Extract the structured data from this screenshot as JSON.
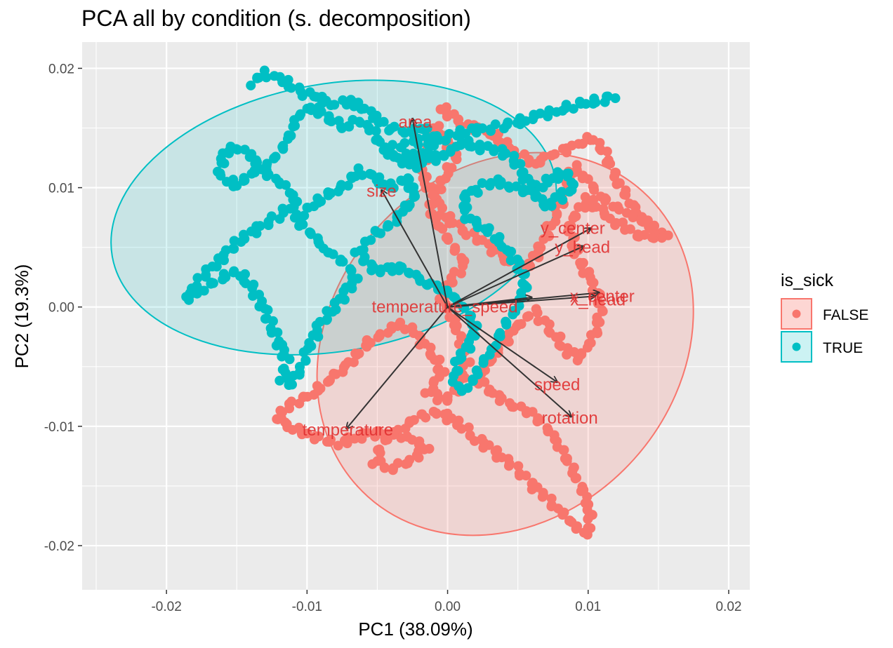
{
  "chart_data": {
    "type": "scatter",
    "title": "PCA all by condition (s. decomposition)",
    "xlabel": "PC1 (38.09%)",
    "ylabel": "PC2 (19.3%)",
    "xlim": [
      -0.026,
      0.0215
    ],
    "ylim": [
      -0.0237,
      0.0222
    ],
    "x_ticks": [
      -0.02,
      -0.01,
      0.0,
      0.01,
      0.02
    ],
    "x_tick_labels": [
      "-0.02",
      "-0.01",
      "0.00",
      "0.01",
      "0.02"
    ],
    "y_ticks": [
      -0.02,
      -0.01,
      0.0,
      0.01,
      0.02
    ],
    "y_tick_labels": [
      "-0.02",
      "-0.01",
      "0.00",
      "0.01",
      "0.02"
    ],
    "grid": true,
    "panel_background": "#ebebeb",
    "legend": {
      "title": "is_sick",
      "position": "right",
      "entries": [
        {
          "label": "FALSE",
          "color": "#F8766D"
        },
        {
          "label": "TRUE",
          "color": "#00BFC4"
        }
      ]
    },
    "series": [
      {
        "name": "FALSE",
        "color": "#F8766D",
        "path": [
          [
            -0.0005,
            0.0168
          ],
          [
            0.0008,
            0.0155
          ],
          [
            0.0032,
            0.0145
          ],
          [
            0.0048,
            0.013
          ],
          [
            0.0062,
            0.012
          ],
          [
            0.0075,
            0.0128
          ],
          [
            0.0092,
            0.0135
          ],
          [
            0.0103,
            0.0142
          ],
          [
            0.0112,
            0.0128
          ],
          [
            0.0122,
            0.0105
          ],
          [
            0.0132,
            0.0082
          ],
          [
            0.0145,
            0.0068
          ],
          [
            0.0155,
            0.006
          ],
          [
            0.0138,
            0.0058
          ],
          [
            0.0118,
            0.0072
          ],
          [
            0.01,
            0.009
          ],
          [
            0.0086,
            0.007
          ],
          [
            0.0092,
            0.0042
          ],
          [
            0.0102,
            0.0022
          ],
          [
            0.011,
            0.0002
          ],
          [
            0.0105,
            -0.0022
          ],
          [
            0.0094,
            -0.0044
          ],
          [
            0.0084,
            -0.0036
          ],
          [
            0.0073,
            -0.0018
          ],
          [
            0.0062,
            -0.0004
          ],
          [
            0.005,
            -0.0014
          ],
          [
            0.004,
            -0.003
          ],
          [
            0.003,
            -0.0045
          ],
          [
            0.0022,
            -0.006
          ],
          [
            0.0032,
            -0.0073
          ],
          [
            0.0046,
            -0.0082
          ],
          [
            0.006,
            -0.009
          ],
          [
            0.0072,
            -0.0102
          ],
          [
            0.0082,
            -0.0122
          ],
          [
            0.0092,
            -0.0142
          ],
          [
            0.0098,
            -0.016
          ],
          [
            0.0102,
            -0.0176
          ],
          [
            0.0098,
            -0.019
          ],
          [
            0.009,
            -0.0182
          ],
          [
            0.008,
            -0.0172
          ],
          [
            0.007,
            -0.016
          ],
          [
            0.0058,
            -0.0146
          ],
          [
            0.0046,
            -0.0133
          ],
          [
            0.0032,
            -0.012
          ],
          [
            0.0018,
            -0.0108
          ],
          [
            0.0006,
            -0.0096
          ],
          [
            -0.0006,
            -0.0088
          ],
          [
            -0.002,
            -0.0092
          ],
          [
            -0.0034,
            -0.0102
          ],
          [
            -0.0046,
            -0.0114
          ],
          [
            -0.0052,
            -0.013
          ],
          [
            -0.004,
            -0.0136
          ],
          [
            -0.0026,
            -0.0128
          ],
          [
            -0.0014,
            -0.0118
          ],
          [
            -0.0028,
            -0.011
          ],
          [
            -0.0044,
            -0.0104
          ],
          [
            -0.006,
            -0.0108
          ],
          [
            -0.0078,
            -0.0114
          ],
          [
            -0.0094,
            -0.011
          ],
          [
            -0.011,
            -0.0102
          ],
          [
            -0.0122,
            -0.0094
          ],
          [
            -0.0112,
            -0.0082
          ],
          [
            -0.0096,
            -0.0072
          ],
          [
            -0.008,
            -0.0058
          ],
          [
            -0.0068,
            -0.0044
          ],
          [
            -0.0056,
            -0.003
          ],
          [
            -0.0044,
            -0.002
          ],
          [
            -0.0032,
            -0.0014
          ],
          [
            -0.0022,
            -0.0024
          ],
          [
            -0.001,
            -0.004
          ],
          [
            -0.0004,
            -0.0056
          ],
          [
            -0.0014,
            -0.007
          ],
          [
            -0.0002,
            -0.008
          ],
          [
            0.0008,
            -0.0066
          ],
          [
            0.0014,
            -0.0048
          ],
          [
            0.001,
            -0.003
          ],
          [
            0.0004,
            -0.001
          ],
          [
            -0.0004,
            0.0006
          ],
          [
            0.0002,
            0.0022
          ],
          [
            0.0012,
            0.0036
          ],
          [
            0.0004,
            0.0052
          ],
          [
            -0.0006,
            0.0066
          ],
          [
            -0.0012,
            0.008
          ],
          [
            -0.0008,
            0.0098
          ],
          [
            0.0,
            0.0112
          ],
          [
            0.0006,
            0.0126
          ],
          [
            -0.0002,
            0.0142
          ],
          [
            -0.001,
            0.0152
          ],
          [
            -0.0014,
            0.0132
          ],
          [
            -0.0018,
            0.011
          ],
          [
            -0.001,
            0.0092
          ],
          [
            -0.0002,
            0.0076
          ],
          [
            0.0012,
            0.0064
          ],
          [
            0.0028,
            0.0052
          ],
          [
            0.0042,
            0.004
          ],
          [
            0.0056,
            0.0032
          ],
          [
            0.0068,
            0.0052
          ],
          [
            0.0076,
            0.0076
          ],
          [
            0.0084,
            0.0098
          ],
          [
            0.009,
            0.0118
          ],
          [
            0.0098,
            0.0108
          ],
          [
            0.011,
            0.0092
          ],
          [
            0.0124,
            0.008
          ],
          [
            0.0136,
            0.0074
          ],
          [
            0.0148,
            0.0064
          ]
        ]
      },
      {
        "name": "TRUE",
        "color": "#00BFC4",
        "path": [
          [
            -0.014,
            0.0188
          ],
          [
            -0.013,
            0.0196
          ],
          [
            -0.0118,
            0.019
          ],
          [
            -0.0104,
            0.018
          ],
          [
            -0.0094,
            0.0176
          ],
          [
            -0.0082,
            0.017
          ],
          [
            -0.007,
            0.0172
          ],
          [
            -0.006,
            0.0168
          ],
          [
            -0.0052,
            0.0158
          ],
          [
            -0.004,
            0.015
          ],
          [
            -0.0028,
            0.0146
          ],
          [
            -0.0016,
            0.015
          ],
          [
            -0.0008,
            0.014
          ],
          [
            -0.0016,
            0.0128
          ],
          [
            -0.0024,
            0.0118
          ],
          [
            -0.0036,
            0.0124
          ],
          [
            -0.0046,
            0.0134
          ],
          [
            -0.0054,
            0.0148
          ],
          [
            -0.0064,
            0.0156
          ],
          [
            -0.0074,
            0.015
          ],
          [
            -0.0086,
            0.016
          ],
          [
            -0.0096,
            0.0168
          ],
          [
            -0.0106,
            0.016
          ],
          [
            -0.0112,
            0.0146
          ],
          [
            -0.0118,
            0.013
          ],
          [
            -0.0128,
            0.012
          ],
          [
            -0.014,
            0.011
          ],
          [
            -0.0152,
            0.0102
          ],
          [
            -0.0162,
            0.0112
          ],
          [
            -0.016,
            0.0128
          ],
          [
            -0.015,
            0.0134
          ],
          [
            -0.014,
            0.0126
          ],
          [
            -0.0128,
            0.0112
          ],
          [
            -0.0116,
            0.01
          ],
          [
            -0.0106,
            0.009
          ],
          [
            -0.0118,
            0.0078
          ],
          [
            -0.0132,
            0.0068
          ],
          [
            -0.0146,
            0.0058
          ],
          [
            -0.0156,
            0.0046
          ],
          [
            -0.0166,
            0.0036
          ],
          [
            -0.0176,
            0.0022
          ],
          [
            -0.0186,
            0.0008
          ],
          [
            -0.0176,
            0.0014
          ],
          [
            -0.0162,
            0.0024
          ],
          [
            -0.015,
            0.003
          ],
          [
            -0.014,
            0.0018
          ],
          [
            -0.0132,
            0.0002
          ],
          [
            -0.0126,
            -0.0014
          ],
          [
            -0.012,
            -0.003
          ],
          [
            -0.0114,
            -0.0046
          ],
          [
            -0.0118,
            -0.006
          ],
          [
            -0.0112,
            -0.0066
          ],
          [
            -0.0104,
            -0.005
          ],
          [
            -0.0098,
            -0.0032
          ],
          [
            -0.009,
            -0.0014
          ],
          [
            -0.008,
            0.0
          ],
          [
            -0.0072,
            0.0014
          ],
          [
            -0.0064,
            0.0026
          ],
          [
            -0.0076,
            0.0038
          ],
          [
            -0.0088,
            0.005
          ],
          [
            -0.0098,
            0.0062
          ],
          [
            -0.0108,
            0.0074
          ],
          [
            -0.0096,
            0.0086
          ],
          [
            -0.0084,
            0.0094
          ],
          [
            -0.0072,
            0.0104
          ],
          [
            -0.0062,
            0.0114
          ],
          [
            -0.0052,
            0.0108
          ],
          [
            -0.004,
            0.01
          ],
          [
            -0.003,
            0.0108
          ],
          [
            -0.0022,
            0.0096
          ],
          [
            -0.003,
            0.0082
          ],
          [
            -0.004,
            0.007
          ],
          [
            -0.0052,
            0.006
          ],
          [
            -0.0064,
            0.0048
          ],
          [
            -0.0056,
            0.0034
          ],
          [
            -0.0046,
            0.003
          ],
          [
            -0.0036,
            0.0034
          ],
          [
            -0.0026,
            0.0028
          ],
          [
            -0.0016,
            0.002
          ],
          [
            -0.0006,
            0.0016
          ],
          [
            0.0004,
            0.001
          ],
          [
            0.0012,
            -0.0002
          ],
          [
            0.002,
            -0.0014
          ],
          [
            0.0016,
            -0.003
          ],
          [
            0.0008,
            -0.0044
          ],
          [
            0.0004,
            -0.0062
          ],
          [
            0.001,
            -0.0072
          ],
          [
            0.0018,
            -0.006
          ],
          [
            0.0026,
            -0.0046
          ],
          [
            0.0034,
            -0.003
          ],
          [
            0.0042,
            -0.0014
          ],
          [
            0.005,
            0.0002
          ],
          [
            0.0056,
            0.0018
          ],
          [
            0.005,
            0.0036
          ],
          [
            0.004,
            0.0052
          ],
          [
            0.0028,
            0.0064
          ],
          [
            0.0014,
            0.0076
          ],
          [
            0.001,
            0.009
          ],
          [
            0.0022,
            0.01
          ],
          [
            0.0034,
            0.0106
          ],
          [
            0.0046,
            0.01
          ],
          [
            0.006,
            0.0096
          ],
          [
            0.0072,
            0.0106
          ],
          [
            0.0084,
            0.0114
          ],
          [
            0.009,
            0.0102
          ],
          [
            0.008,
            0.0092
          ],
          [
            0.007,
            0.0084
          ],
          [
            0.0062,
            0.0094
          ],
          [
            0.0054,
            0.0112
          ],
          [
            0.0046,
            0.0126
          ],
          [
            0.0034,
            0.0132
          ],
          [
            0.0022,
            0.0134
          ],
          [
            0.001,
            0.0138
          ],
          [
            0.0002,
            0.013
          ],
          [
            -0.0008,
            0.0124
          ],
          [
            -0.0018,
            0.0128
          ],
          [
            -0.0028,
            0.0126
          ],
          [
            -0.0038,
            0.0128
          ],
          [
            -0.0046,
            0.013
          ],
          [
            -0.0032,
            0.0136
          ],
          [
            -0.0016,
            0.014
          ],
          [
            0.0,
            0.0142
          ],
          [
            0.0016,
            0.0148
          ],
          [
            0.0032,
            0.015
          ],
          [
            0.0048,
            0.0154
          ],
          [
            0.0064,
            0.016
          ],
          [
            0.008,
            0.0166
          ],
          [
            0.0096,
            0.017
          ],
          [
            0.011,
            0.0174
          ],
          [
            0.0122,
            0.0178
          ]
        ]
      }
    ],
    "ellipses": [
      {
        "group": "FALSE",
        "color": "#F8766D",
        "center": [
          0.0041,
          -0.0031
        ],
        "semi_axis_x": 0.0123,
        "semi_axis_y": 0.0172,
        "rotation_deg": 42
      },
      {
        "group": "TRUE",
        "color": "#00BFC4",
        "center": [
          -0.0081,
          0.0075
        ],
        "semi_axis_x": 0.016,
        "semi_axis_y": 0.0112,
        "rotation_deg": -10
      }
    ],
    "variables": [
      {
        "name": "area",
        "x": -0.0025,
        "y": 0.0158,
        "label_x": -0.0023,
        "label_y": 0.0155
      },
      {
        "name": "size",
        "x": -0.0047,
        "y": 0.0098,
        "label_x": -0.0047,
        "label_y": 0.0097
      },
      {
        "name": "y_center",
        "x": 0.0102,
        "y": 0.0066,
        "label_x": 0.0089,
        "label_y": 0.0066
      },
      {
        "name": "y_head",
        "x": 0.0097,
        "y": 0.0051,
        "label_x": 0.0096,
        "label_y": 0.005
      },
      {
        "name": "x_center",
        "x": 0.0108,
        "y": 0.0012,
        "label_x": 0.011,
        "label_y": 0.0009
      },
      {
        "name": "x_head",
        "x": 0.0105,
        "y": 0.0009,
        "label_x": 0.0107,
        "label_y": 0.0006
      },
      {
        "name": "temperature_speed",
        "x": 0.006,
        "y": 0.0008,
        "label_x": -0.0002,
        "label_y": 0.0
      },
      {
        "name": "speed",
        "x": 0.0078,
        "y": -0.0063,
        "label_x": 0.0078,
        "label_y": -0.0065
      },
      {
        "name": "rotation",
        "x": 0.0088,
        "y": -0.0092,
        "label_x": 0.0087,
        "label_y": -0.0093
      },
      {
        "name": "temperature",
        "x": -0.0072,
        "y": -0.0102,
        "label_x": -0.0071,
        "label_y": -0.0103
      }
    ],
    "variable_labels": {
      "area": "area",
      "size": "size",
      "y_center": "y_center",
      "y_head": "y_head",
      "x_center": "x_center",
      "x_head": "x_head",
      "temperature_speed": "temperature_speed",
      "speed": "speed",
      "rotation": "rotation",
      "temperature": "temperature"
    }
  }
}
